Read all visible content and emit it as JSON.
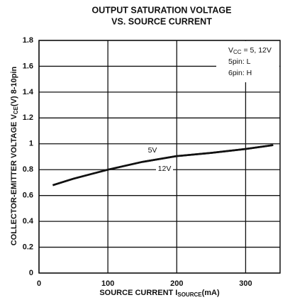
{
  "chart_data": {
    "type": "line",
    "title": [
      "OUTPUT SATURATION VOLTAGE",
      "VS. SOURCE CURRENT"
    ],
    "ylabel": {
      "main": "COLLECTOR-EMITTER VOLTAGE V",
      "sub": "CE",
      "tail": "(V) 8-10pin"
    },
    "xlabel": {
      "main": "SOURCE CURRENT I",
      "sub": "SOURCE",
      "tail": "(mA)"
    },
    "annotation": [
      {
        "main": "V",
        "sub": "CC",
        "tail": " = 5, 12V"
      },
      {
        "main": "5pin: L"
      },
      {
        "main": "6pin: H"
      }
    ],
    "x": [
      20,
      50,
      100,
      150,
      200,
      250,
      300,
      340
    ],
    "series": [
      {
        "name": "5V",
        "color": "#111111",
        "values": [
          0.68,
          0.73,
          0.8,
          0.86,
          0.905,
          0.93,
          0.96,
          0.99
        ]
      },
      {
        "name": "12V",
        "color": "#111111",
        "values": [
          0.68,
          0.73,
          0.8,
          0.86,
          0.905,
          0.93,
          0.96,
          0.99
        ]
      }
    ],
    "xlim": [
      0,
      350
    ],
    "ylim": [
      0,
      1.8
    ],
    "xticks": [
      0,
      100,
      200,
      300
    ],
    "yticks": [
      0,
      0.2,
      0.4,
      0.6,
      0.8,
      1.0,
      1.2,
      1.4,
      1.6,
      1.8
    ],
    "grid": true
  }
}
